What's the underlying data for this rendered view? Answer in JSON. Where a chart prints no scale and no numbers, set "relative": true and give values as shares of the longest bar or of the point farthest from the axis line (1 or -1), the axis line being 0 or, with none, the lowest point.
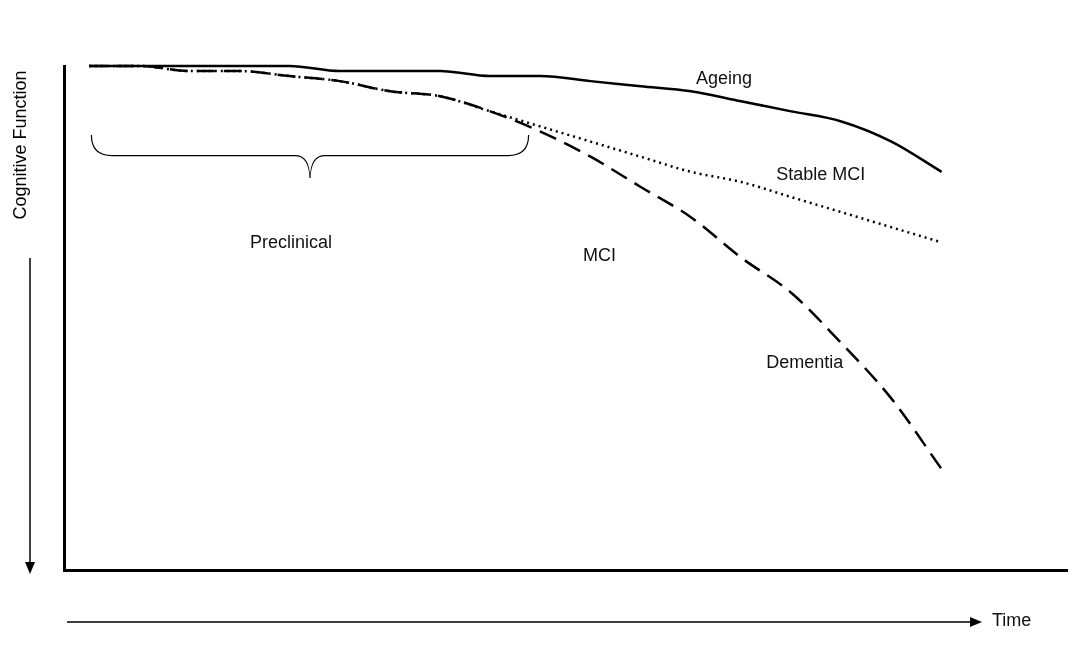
{
  "chart_data": {
    "type": "line",
    "relative": true,
    "xlabel": "Time",
    "ylabel": "Cognitive Function",
    "legend": false,
    "grid": false,
    "tick_labels": false,
    "marker": "none",
    "categories": [
      null,
      null,
      null,
      null,
      null,
      null,
      null,
      null,
      null,
      null,
      null,
      null,
      null,
      null,
      null,
      null,
      null,
      null,
      null,
      null
    ],
    "series": [
      {
        "name": "Ageing",
        "color": "#000000",
        "line_style": "solid",
        "values": [
          1,
          1,
          1,
          1,
          1,
          0.99,
          0.99,
          0.99,
          0.98,
          0.98,
          0.97,
          0.96,
          0.95,
          0.93,
          0.91,
          0.89,
          0.85,
          0.79,
          null,
          null
        ]
      },
      {
        "name": "Stable MCI",
        "color": "#000000",
        "line_style": "dotted",
        "values": [
          1,
          1,
          0.99,
          0.99,
          0.98,
          0.97,
          0.95,
          0.94,
          0.91,
          0.88,
          0.85,
          0.82,
          0.79,
          0.77,
          0.74,
          0.71,
          0.68,
          0.65,
          null,
          null
        ]
      },
      {
        "name": "Dementia",
        "color": "#000000",
        "line_style": "dashed",
        "values": [
          1,
          1,
          0.99,
          0.99,
          0.98,
          0.97,
          0.95,
          0.94,
          0.91,
          0.87,
          0.82,
          0.76,
          0.7,
          0.62,
          0.55,
          0.45,
          0.34,
          0.2,
          null,
          null
        ]
      }
    ],
    "annotations": [
      "Preclinical",
      "MCI"
    ]
  }
}
